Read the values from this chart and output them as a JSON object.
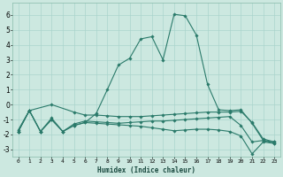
{
  "xlabel": "Humidex (Indice chaleur)",
  "ylabel": "",
  "background_color": "#cce8e0",
  "grid_color": "#aad4cc",
  "line_color": "#2a7a6a",
  "xlim": [
    -0.5,
    23.5
  ],
  "ylim": [
    -3.5,
    6.8
  ],
  "yticks": [
    -3,
    -2,
    -1,
    0,
    1,
    2,
    3,
    4,
    5,
    6
  ],
  "xticks": [
    0,
    1,
    2,
    3,
    4,
    5,
    6,
    7,
    8,
    9,
    10,
    11,
    12,
    13,
    14,
    15,
    16,
    17,
    18,
    19,
    20,
    21,
    22,
    23
  ],
  "lines": [
    {
      "x": [
        0,
        1,
        3,
        5,
        6,
        7,
        8,
        9,
        10,
        11,
        12,
        13,
        14,
        15,
        16,
        17,
        18,
        19,
        20,
        21,
        22,
        23
      ],
      "y": [
        -1.8,
        -0.4,
        0.0,
        -0.5,
        -0.7,
        -0.7,
        -0.75,
        -0.8,
        -0.8,
        -0.8,
        -0.75,
        -0.7,
        -0.65,
        -0.6,
        -0.55,
        -0.5,
        -0.5,
        -0.5,
        -0.45,
        -1.2,
        -2.3,
        -2.5
      ]
    },
    {
      "x": [
        0,
        1,
        2,
        3,
        4,
        5,
        6,
        7,
        8,
        9,
        10,
        11,
        12,
        13,
        14,
        15,
        16,
        17,
        18,
        19,
        20,
        21,
        22,
        23
      ],
      "y": [
        -1.8,
        -0.4,
        -1.8,
        -1.0,
        -1.8,
        -1.3,
        -1.1,
        -1.15,
        -1.2,
        -1.25,
        -1.2,
        -1.15,
        -1.1,
        -1.1,
        -1.05,
        -1.0,
        -0.95,
        -0.9,
        -0.85,
        -0.8,
        -1.4,
        -2.5,
        -2.4,
        -2.5
      ]
    },
    {
      "x": [
        0,
        1,
        2,
        3,
        4,
        5,
        6,
        7,
        8,
        9,
        10,
        11,
        12,
        13,
        14,
        15,
        16,
        17,
        18,
        19,
        20,
        21,
        22,
        23
      ],
      "y": [
        -1.8,
        -0.4,
        -1.8,
        -1.0,
        -1.8,
        -1.4,
        -1.2,
        -1.25,
        -1.3,
        -1.35,
        -1.4,
        -1.45,
        -1.55,
        -1.65,
        -1.75,
        -1.7,
        -1.65,
        -1.65,
        -1.7,
        -1.8,
        -2.1,
        -3.3,
        -2.5,
        -2.6
      ]
    },
    {
      "x": [
        0,
        1,
        2,
        3,
        4,
        5,
        6,
        7,
        8,
        9,
        10,
        11,
        12,
        13,
        14,
        15,
        16,
        17,
        18,
        19,
        20,
        21,
        22,
        23
      ],
      "y": [
        -1.7,
        -0.4,
        -1.8,
        -0.9,
        -1.8,
        -1.4,
        -1.2,
        -0.6,
        1.0,
        2.65,
        3.1,
        4.4,
        4.55,
        3.0,
        6.05,
        5.95,
        4.65,
        1.35,
        -0.35,
        -0.4,
        -0.35,
        -1.25,
        -2.4,
        -2.6
      ]
    }
  ]
}
